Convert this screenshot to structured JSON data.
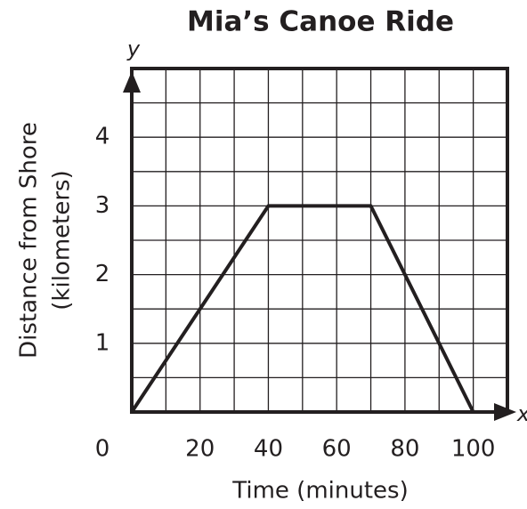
{
  "chart_data": {
    "type": "line",
    "title": "Mia’s Canoe Ride",
    "xlabel": "Time (minutes)",
    "ylabel": [
      "Distance from Shore",
      "(kilometers)"
    ],
    "x_axis_name": "x",
    "y_axis_name": "y",
    "x": [
      0,
      40,
      70,
      100
    ],
    "series": [
      {
        "name": "Distance",
        "color": "#231f20",
        "values": [
          0,
          3,
          3,
          0
        ]
      }
    ],
    "xlim": [
      0,
      110
    ],
    "ylim": [
      0,
      5
    ],
    "xticks": [
      0,
      20,
      40,
      60,
      80,
      100
    ],
    "yticks": [
      1,
      2,
      3,
      4
    ],
    "xgrid": [
      10,
      20,
      30,
      40,
      50,
      60,
      70,
      80,
      90,
      100,
      110
    ],
    "ygrid": [
      0.5,
      1,
      1.5,
      2,
      2.5,
      3,
      3.5,
      4,
      4.5,
      5
    ],
    "grid": true
  }
}
